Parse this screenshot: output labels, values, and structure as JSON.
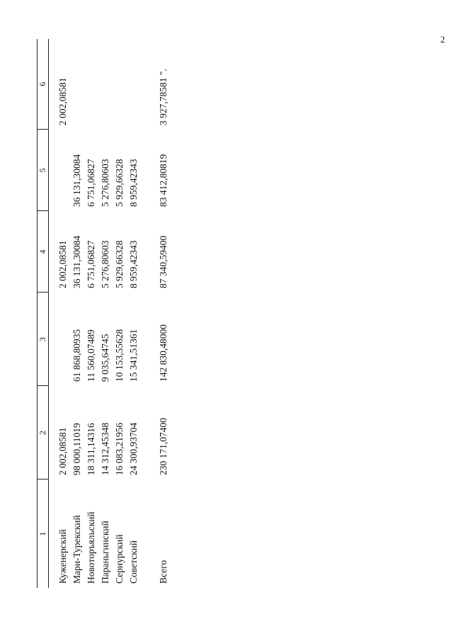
{
  "page_number": "2",
  "table": {
    "headers": [
      "1",
      "2",
      "3",
      "4",
      "5",
      "6"
    ],
    "rows": [
      [
        "Куженерский",
        "2 002,08581",
        null,
        "2 002,08581",
        null,
        "2 002,08581"
      ],
      [
        "Мари-Турекский",
        "98 000,11019",
        "61 868,80935",
        "36 131,30084",
        "36 131,30084",
        null
      ],
      [
        "Новоторъяльский",
        "18 311,14316",
        "11 560,07489",
        "6 751,06827",
        "6 751,06827",
        null
      ],
      [
        "Параньгинский",
        "14 312,45348",
        "9 035,64745",
        "5 276,80603",
        "5 276,80603",
        null
      ],
      [
        "Сернурский",
        "16 083,21956",
        "10 153,55628",
        "5 929,66328",
        "5 929,66328",
        null
      ],
      [
        "Советский",
        "24 300,93704",
        "15 341,51361",
        "8 959,42343",
        "8 959,42343",
        null
      ],
      [
        "Всего",
        "230 171,07400",
        "142 830,48000",
        "87 340,59400",
        "83 412,80819",
        "3 927,78581 \"."
      ]
    ]
  }
}
